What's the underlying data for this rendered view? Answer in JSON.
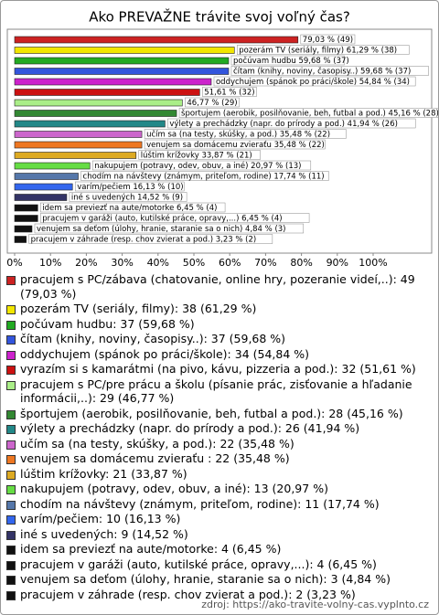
{
  "chart_data": {
    "type": "barh",
    "title": "Ako PREVAŽNE trávite svoj voľný čas?",
    "values": [
      79.03,
      61.29,
      59.68,
      59.68,
      54.84,
      51.61,
      46.77,
      45.16,
      41.94,
      35.48,
      35.48,
      33.87,
      20.97,
      17.74,
      16.13,
      14.52,
      6.45,
      6.45,
      4.84,
      3.23
    ],
    "value_labels": [
      "79,03 % (49)",
      "pozerám TV (seriály, filmy) 61,29 % (38)",
      "počúvam hudbu 59,68 % (37)",
      "čítam (knihy, noviny, časopisy..) 59,68 % (37)",
      "oddychujem (spánok po práci/škole) 54,84 % (34)",
      "51,61 % (32)",
      "46,77 % (29)",
      "športujem (aerobik, posilňovanie, beh, futbal a pod.) 45,16 % (28)",
      "výlety a prechádzky (napr. do prírody a pod.) 41,94 % (26)",
      "učím sa (na testy, skúšky, a pod.) 35,48 % (22)",
      "venujem sa domácemu zvieraťu  35,48 % (22)",
      "lúštim krížovky 33,87 % (21)",
      "nakupujem (potravy, odev, obuv, a iné) 20,97 % (13)",
      "chodím na návštevy (známym, priteľom, rodine) 17,74 % (11)",
      "varím/pečiem 16,13 % (10)",
      "iné s uvedených 14,52 % (9)",
      "idem sa previezť na aute/motorke 6,45 % (4)",
      "pracujem v garáži (auto, kutilské práce, opravy,...) 6,45 % (4)",
      "venujem sa deťom (úlohy, hranie, staranie sa o nich) 4,84 % (3)",
      "pracujem v záhrade (resp. chov zvierat a pod.) 3,23 % (2)"
    ],
    "legend": [
      "pracujem s PC/zábava (chatovanie, online hry, pozeranie videí,..): 49 (79,03 %)",
      "pozerám TV (seriály, filmy): 38 (61,29 %)",
      "počúvam hudbu: 37 (59,68 %)",
      "čítam (knihy, noviny, časopisy..): 37 (59,68 %)",
      "oddychujem (spánok po práci/škole): 34 (54,84 %)",
      "vyrazím si s kamarátmi (na pivo, kávu, pizzeria a pod.): 32 (51,61 %)",
      "pracujem s PC/pre prácu a školu (písanie prác, zisťovanie a hľadanie informácii,..): 29 (46,77 %)",
      "športujem (aerobik, posilňovanie, beh, futbal a pod.): 28 (45,16 %)",
      "výlety a prechádzky (napr. do prírody a pod.): 26 (41,94 %)",
      "učím sa (na testy, skúšky, a pod.): 22 (35,48 %)",
      "venujem sa domácemu zvieraťu : 22 (35,48 %)",
      "lúštim krížovky: 21 (33,87 %)",
      "nakupujem (potravy, odev, obuv, a iné): 13 (20,97 %)",
      "chodím na návštevy (známym, priteľom, rodine): 11 (17,74 %)",
      "varím/pečiem: 10 (16,13 %)",
      "iné s uvedených: 9 (14,52 %)",
      "idem sa previezť na aute/motorke: 4 (6,45 %)",
      "pracujem v garáži (auto, kutilské práce, opravy,...): 4 (6,45 %)",
      "venujem sa deťom (úlohy, hranie, staranie sa o nich): 3 (4,84 %)",
      "pracujem v záhrade (resp. chov zvierat a pod.): 2 (3,23 %)"
    ],
    "colors": [
      "#cc2222",
      "#f2e600",
      "#22aa22",
      "#3355dd",
      "#cc22cc",
      "#cc1111",
      "#aaee88",
      "#338833",
      "#228888",
      "#cc66cc",
      "#ee7722",
      "#ddaa22",
      "#66dd44",
      "#5577aa",
      "#3366ee",
      "#333366",
      "#111111",
      "#111111",
      "#111111",
      "#111111"
    ],
    "xlim": [
      0,
      100
    ],
    "xticks": [
      {
        "value": 0,
        "label": "0%"
      },
      {
        "value": 10,
        "label": "10%"
      },
      {
        "value": 20,
        "label": "20%"
      },
      {
        "value": 30,
        "label": "30%"
      },
      {
        "value": 40,
        "label": "40%"
      },
      {
        "value": 50,
        "label": "50%"
      },
      {
        "value": 60,
        "label": "60%"
      },
      {
        "value": 70,
        "label": "70%"
      },
      {
        "value": 80,
        "label": "80%"
      },
      {
        "value": 90,
        "label": "90%"
      },
      {
        "value": 100,
        "label": "100%"
      }
    ],
    "source": "zdroj: https://ako-travite-volny-cas.vyplnto.cz"
  }
}
